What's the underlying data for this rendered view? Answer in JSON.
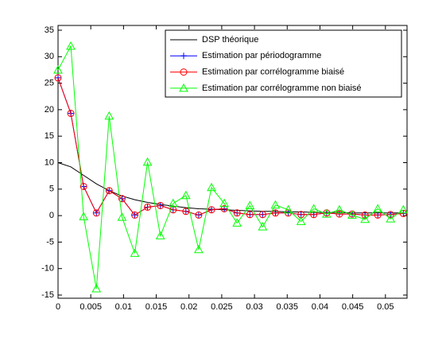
{
  "chart_data": {
    "type": "line",
    "x": [
      0,
      0.00195,
      0.00391,
      0.00586,
      0.00781,
      0.00977,
      0.01172,
      0.01367,
      0.01563,
      0.01758,
      0.01953,
      0.02148,
      0.02344,
      0.02539,
      0.02734,
      0.0293,
      0.03125,
      0.0332,
      0.03516,
      0.03711,
      0.03906,
      0.04102,
      0.04297,
      0.04492,
      0.04688,
      0.04883,
      0.05078,
      0.05273
    ],
    "series": [
      {
        "name": "DSP théorique",
        "color": "#000000",
        "marker": "none",
        "values": [
          10,
          9.2,
          7.6,
          6.0,
          4.7,
          3.7,
          3.0,
          2.5,
          2.1,
          1.8,
          1.5,
          1.3,
          1.2,
          1.1,
          1.0,
          0.9,
          0.8,
          0.8,
          0.7,
          0.7,
          0.6,
          0.6,
          0.6,
          0.5,
          0.5,
          0.5,
          0.5,
          0.5
        ]
      },
      {
        "name": "Estimation par périodogramme",
        "color": "#0000ff",
        "marker": "plus",
        "values": [
          26,
          19.3,
          5.5,
          0.5,
          4.7,
          3.2,
          0.1,
          1.6,
          1.9,
          1.1,
          0.8,
          0.1,
          1.1,
          1.3,
          0.5,
          0.2,
          0.2,
          0.5,
          0.5,
          0.2,
          0.2,
          0.5,
          0.3,
          0.3,
          0.1,
          0.1,
          0.2,
          0.4
        ]
      },
      {
        "name": "Estimation par corrélogramme biaisé",
        "color": "#ff0000",
        "marker": "circle",
        "values": [
          26,
          19.3,
          5.5,
          0.5,
          4.7,
          3.2,
          0.1,
          1.6,
          1.9,
          1.1,
          0.8,
          0.1,
          1.1,
          1.3,
          0.5,
          0.2,
          0.2,
          0.5,
          0.5,
          0.2,
          0.2,
          0.5,
          0.3,
          0.3,
          0.1,
          0.1,
          0.2,
          0.4
        ]
      },
      {
        "name": "Estimation par corrélogramme non biaisé",
        "color": "#00ff00",
        "marker": "triangle",
        "values": [
          27.5,
          32,
          -0.2,
          -13.8,
          18.8,
          -0.3,
          -7.1,
          10.1,
          -3.8,
          2.3,
          3.8,
          -6.4,
          5.3,
          2.3,
          -1.4,
          1.9,
          -2.1,
          2,
          1.1,
          -1.1,
          1.3,
          0.3,
          1.1,
          0.1,
          -0.7,
          1.3,
          -0.6,
          1.1
        ]
      }
    ],
    "xlim": [
      0,
      0.0533
    ],
    "ylim": [
      -15.6,
      35.9
    ],
    "xticks": [
      0,
      0.005,
      0.01,
      0.015,
      0.02,
      0.025,
      0.03,
      0.035,
      0.04,
      0.045,
      0.05
    ],
    "yticks": [
      -15,
      -10,
      -5,
      0,
      5,
      10,
      15,
      20,
      25,
      30,
      35
    ],
    "legend": "top-right",
    "grid": false
  }
}
